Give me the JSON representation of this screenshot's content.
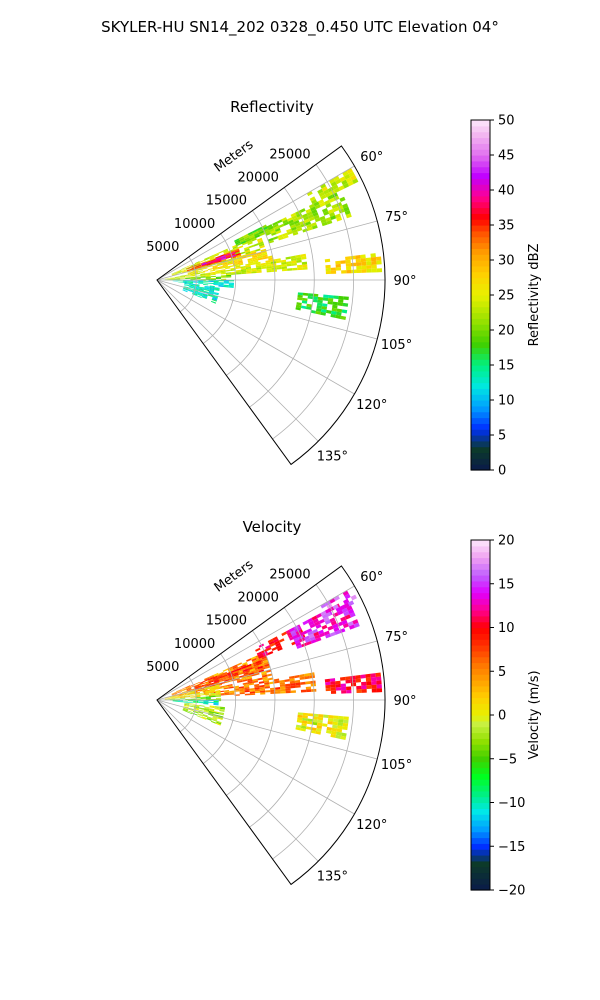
{
  "figure": {
    "suptitle": "SKYLER-HU  SN14_202  0328_0.450 UTC Elevation 04°"
  },
  "chart_data": [
    {
      "type": "heatmap",
      "panel": "top",
      "title": "Reflectivity",
      "radial_label": "Meters",
      "radial_ticks": [
        "5000",
        "10000",
        "15000",
        "20000",
        "25000"
      ],
      "radial_tick_values": [
        5000,
        10000,
        15000,
        20000,
        25000
      ],
      "azimuth_ticks": [
        "60°",
        "75°",
        "90°",
        "105°",
        "120°",
        "135°"
      ],
      "azimuth_tick_values": [
        60,
        75,
        90,
        105,
        120,
        135
      ],
      "azimuth_range_deg": [
        54,
        144
      ],
      "range_max_m": 29000,
      "grid": true,
      "colorbar": {
        "label": "Reflectivity dBZ",
        "min": 0,
        "max": 50,
        "ticks": [
          "0",
          "5",
          "10",
          "15",
          "20",
          "25",
          "30",
          "35",
          "40",
          "45",
          "50"
        ],
        "tick_values": [
          0,
          5,
          10,
          15,
          20,
          25,
          30,
          35,
          40,
          45,
          50
        ]
      },
      "echo_regions": [
        {
          "az": [
            66,
            75
          ],
          "r": [
            2000,
            14000
          ],
          "value": 24
        },
        {
          "az": [
            69,
            74
          ],
          "r": [
            4000,
            11000
          ],
          "value": 34
        },
        {
          "az": [
            70,
            73
          ],
          "r": [
            6000,
            10500
          ],
          "value": 40
        },
        {
          "az": [
            74,
            80
          ],
          "r": [
            4000,
            15000
          ],
          "value": 26
        },
        {
          "az": [
            80,
            86
          ],
          "r": [
            1000,
            19000
          ],
          "value": 24
        },
        {
          "az": [
            83,
            88
          ],
          "r": [
            21500,
            28500
          ],
          "value": 27
        },
        {
          "az": [
            64,
            72
          ],
          "r": [
            15000,
            26000
          ],
          "value": 22
        },
        {
          "az": [
            60,
            64
          ],
          "r": [
            22000,
            28500
          ],
          "value": 24
        },
        {
          "az": [
            63,
            67
          ],
          "r": [
            11000,
            16000
          ],
          "value": 20
        },
        {
          "az": [
            86,
            91
          ],
          "r": [
            1000,
            9000
          ],
          "value": 21
        },
        {
          "az": [
            90,
            96
          ],
          "r": [
            2000,
            9500
          ],
          "value": 12
        },
        {
          "az": [
            96,
            112
          ],
          "r": [
            3500,
            8000
          ],
          "value": 13
        },
        {
          "az": [
            95,
            102
          ],
          "r": [
            18000,
            24000
          ],
          "value": 17
        }
      ]
    },
    {
      "type": "heatmap",
      "panel": "bottom",
      "title": "Velocity",
      "radial_label": "Meters",
      "radial_ticks": [
        "5000",
        "10000",
        "15000",
        "20000",
        "25000"
      ],
      "radial_tick_values": [
        5000,
        10000,
        15000,
        20000,
        25000
      ],
      "azimuth_ticks": [
        "60°",
        "75°",
        "90°",
        "105°",
        "120°",
        "135°"
      ],
      "azimuth_tick_values": [
        60,
        75,
        90,
        105,
        120,
        135
      ],
      "azimuth_range_deg": [
        54,
        144
      ],
      "range_max_m": 29000,
      "grid": true,
      "colorbar": {
        "label": "Velocity (m/s)",
        "min": -20,
        "max": 20,
        "ticks": [
          "−20",
          "−15",
          "−10",
          "−5",
          "0",
          "5",
          "10",
          "15",
          "20"
        ],
        "tick_values": [
          -20,
          -15,
          -10,
          -5,
          0,
          5,
          10,
          15,
          20
        ]
      },
      "echo_regions": [
        {
          "az": [
            66,
            80
          ],
          "r": [
            2000,
            15000
          ],
          "value": 5
        },
        {
          "az": [
            68,
            76
          ],
          "r": [
            5000,
            14000
          ],
          "value": 8
        },
        {
          "az": [
            62,
            68
          ],
          "r": [
            14000,
            20000
          ],
          "value": 10
        },
        {
          "az": [
            62,
            70
          ],
          "r": [
            19000,
            27000
          ],
          "value": 14
        },
        {
          "az": [
            60,
            64
          ],
          "r": [
            24000,
            28500
          ],
          "value": 15
        },
        {
          "az": [
            80,
            87
          ],
          "r": [
            6000,
            20000
          ],
          "value": 6
        },
        {
          "az": [
            83,
            88
          ],
          "r": [
            21500,
            28500
          ],
          "value": 10
        },
        {
          "az": [
            76,
            86
          ],
          "r": [
            1000,
            8000
          ],
          "value": 1
        },
        {
          "az": [
            86,
            91
          ],
          "r": [
            1000,
            8000
          ],
          "value": -4
        },
        {
          "az": [
            90,
            95
          ],
          "r": [
            2000,
            7500
          ],
          "value": -10
        },
        {
          "az": [
            96,
            112
          ],
          "r": [
            3500,
            8500
          ],
          "value": -2
        },
        {
          "az": [
            95,
            102
          ],
          "r": [
            18000,
            24000
          ],
          "value": 0
        }
      ]
    }
  ]
}
